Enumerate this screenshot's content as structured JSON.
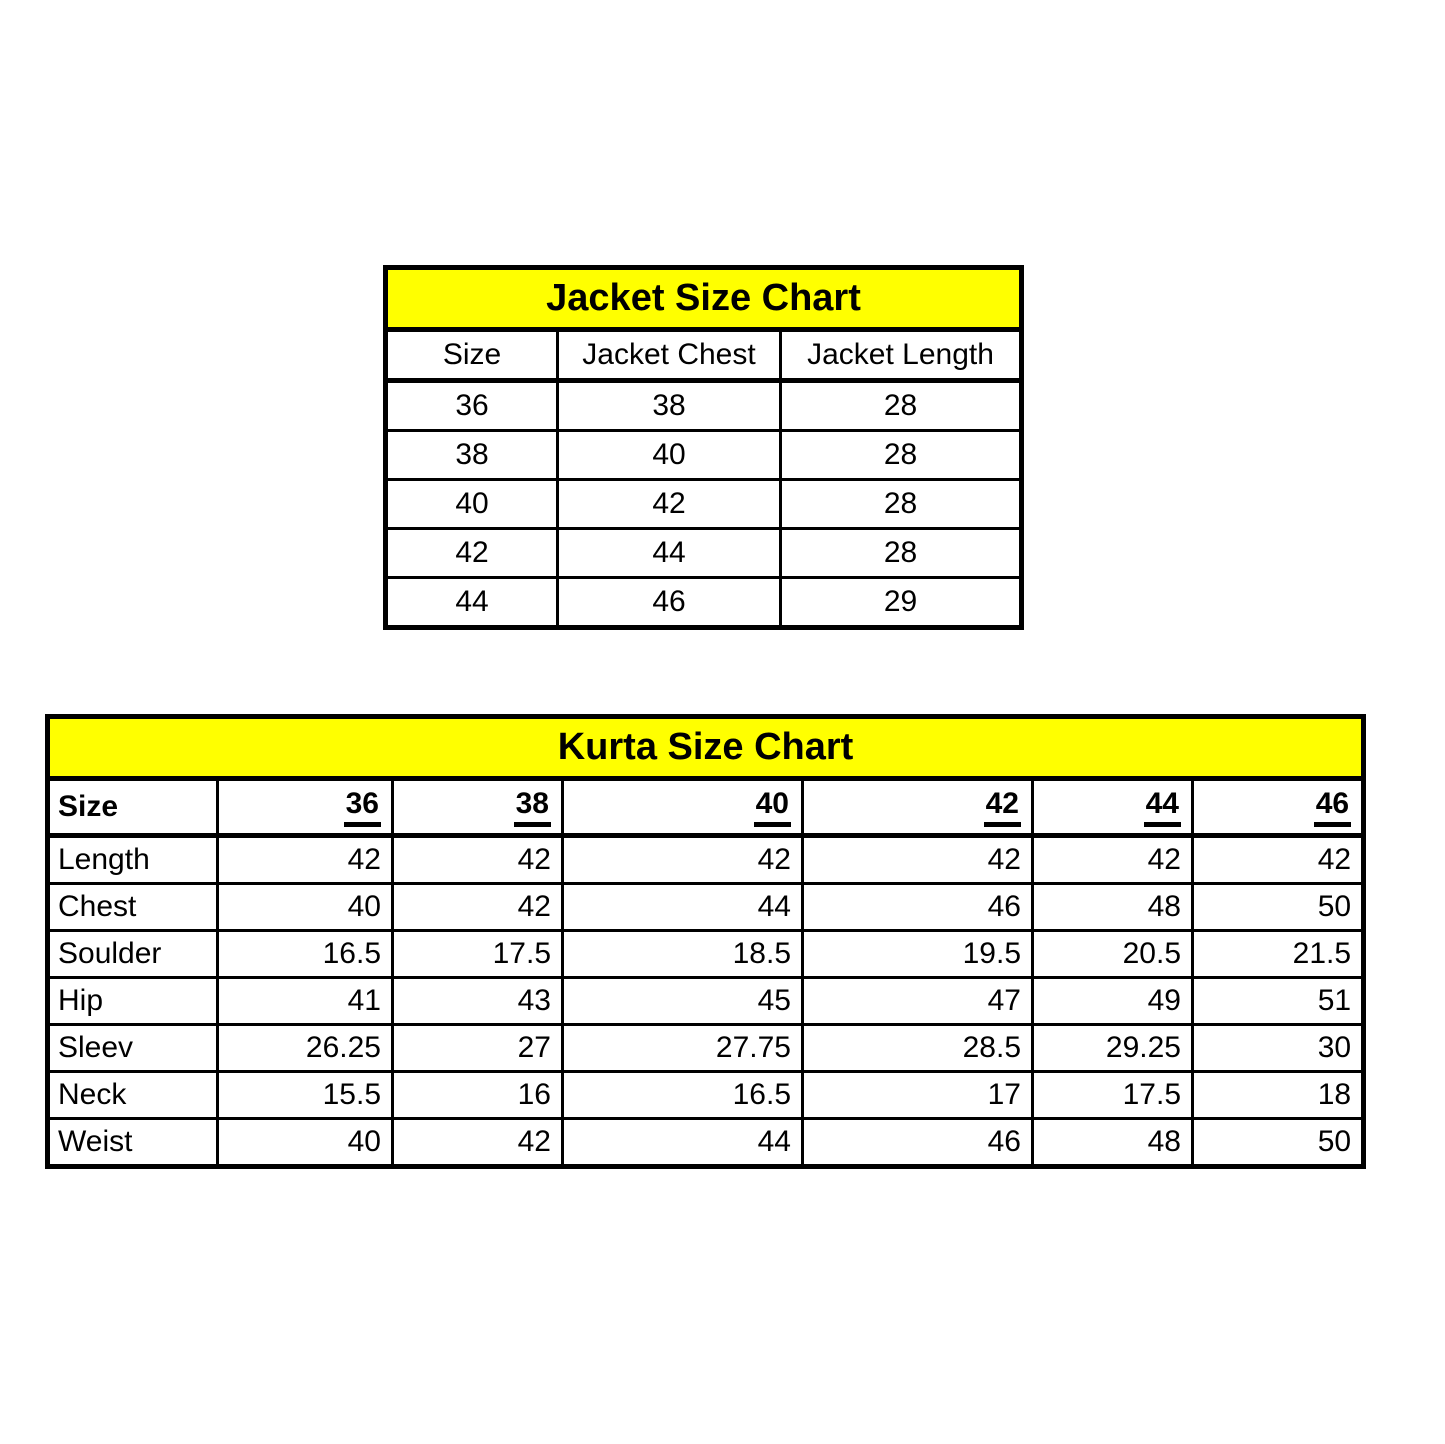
{
  "colors": {
    "title_background": "#ffff00",
    "border": "#000000",
    "text": "#000000",
    "page_background": "#ffffff"
  },
  "chart_data": [
    {
      "type": "table",
      "title": "Jacket Size Chart",
      "columns": [
        "Size",
        "Jacket Chest",
        "Jacket Length"
      ],
      "rows": [
        [
          "36",
          "38",
          "28"
        ],
        [
          "38",
          "40",
          "28"
        ],
        [
          "40",
          "42",
          "28"
        ],
        [
          "42",
          "44",
          "28"
        ],
        [
          "44",
          "46",
          "29"
        ]
      ]
    },
    {
      "type": "table",
      "title": "Kurta Size Chart",
      "corner_label": "Size",
      "columns": [
        "36",
        "38",
        "40",
        "42",
        "44",
        "46"
      ],
      "row_labels": [
        "Length",
        "Chest",
        "Soulder",
        "Hip",
        "Sleev",
        "Neck",
        "Weist"
      ],
      "rows": [
        [
          "42",
          "42",
          "42",
          "42",
          "42",
          "42"
        ],
        [
          "40",
          "42",
          "44",
          "46",
          "48",
          "50"
        ],
        [
          "16.5",
          "17.5",
          "18.5",
          "19.5",
          "20.5",
          "21.5"
        ],
        [
          "41",
          "43",
          "45",
          "47",
          "49",
          "51"
        ],
        [
          "26.25",
          "27",
          "27.75",
          "28.5",
          "29.25",
          "30"
        ],
        [
          "15.5",
          "16",
          "16.5",
          "17",
          "17.5",
          "18"
        ],
        [
          "40",
          "42",
          "44",
          "46",
          "48",
          "50"
        ]
      ]
    }
  ]
}
